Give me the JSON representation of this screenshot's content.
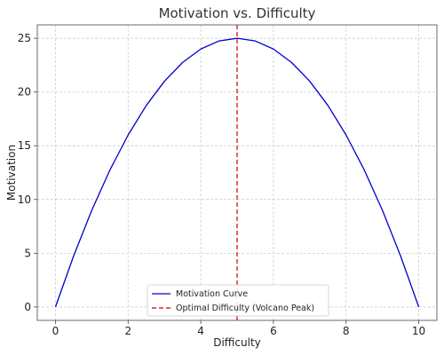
{
  "chart_data": {
    "type": "line",
    "title": "Motivation vs. Difficulty",
    "xlabel": "Difficulty",
    "ylabel": "Motivation",
    "xlim": [
      -0.5,
      10.5
    ],
    "ylim": [
      -1.25,
      26.25
    ],
    "x_ticks": [
      0,
      2,
      4,
      6,
      8,
      10
    ],
    "y_ticks": [
      0,
      5,
      10,
      15,
      20,
      25
    ],
    "grid": true,
    "grid_style": "dashed",
    "legend_position": "bottom-center",
    "series": [
      {
        "name": "Motivation Curve",
        "color": "#0000cc",
        "style": "solid",
        "x": [
          0,
          0.5,
          1,
          1.5,
          2,
          2.5,
          3,
          3.5,
          4,
          4.5,
          5,
          5.5,
          6,
          6.5,
          7,
          7.5,
          8,
          8.5,
          9,
          9.5,
          10
        ],
        "y": [
          0,
          4.75,
          9,
          12.75,
          16,
          18.75,
          21,
          22.75,
          24,
          24.75,
          25,
          24.75,
          24,
          22.75,
          21,
          18.75,
          16,
          12.75,
          9,
          4.75,
          0
        ]
      }
    ],
    "vline": {
      "name": "Optimal Difficulty (Volcano Peak)",
      "x": 5,
      "color": "#cc0000",
      "style": "dashed"
    }
  }
}
